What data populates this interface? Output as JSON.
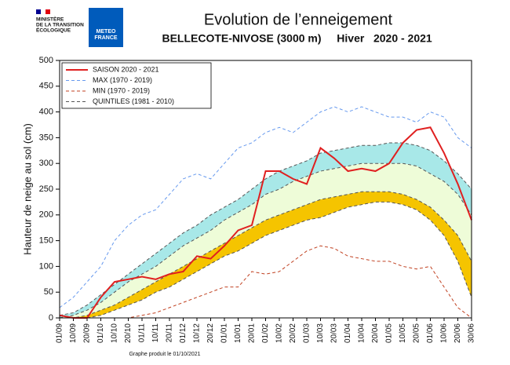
{
  "header": {
    "ministry": [
      "MINISTÈRE",
      "DE LA TRANSITION",
      "ÉCOLOGIQUE"
    ],
    "logo": [
      "METEO",
      "FRANCE"
    ]
  },
  "chart_data": {
    "type": "line",
    "title": "Evolution de l’enneigement",
    "subtitle": "BELLECOTE-NIVOSE (3000 m)",
    "season": "Hiver   2020 - 2021",
    "ylabel": "Hauteur de neige au sol (cm)",
    "footer": "Graphe produit le 01/10/2021",
    "categories": [
      "01/09",
      "10/09",
      "20/09",
      "01/10",
      "10/10",
      "20/10",
      "01/11",
      "10/11",
      "20/11",
      "01/12",
      "10/12",
      "20/12",
      "01/01",
      "10/01",
      "20/01",
      "01/02",
      "10/02",
      "20/02",
      "01/03",
      "10/03",
      "20/03",
      "01/04",
      "10/04",
      "20/04",
      "01/05",
      "10/05",
      "20/05",
      "01/06",
      "10/06",
      "20/06",
      "30/06"
    ],
    "ylim": [
      0,
      500
    ],
    "yticks": [
      0,
      50,
      100,
      150,
      200,
      250,
      300,
      350,
      400,
      450,
      500
    ],
    "series": [
      {
        "name": "SAISON 2020 - 2021",
        "color": "#e02020",
        "dash": false,
        "values": [
          5,
          0,
          0,
          40,
          70,
          75,
          80,
          75,
          85,
          90,
          120,
          115,
          140,
          170,
          180,
          285,
          285,
          270,
          260,
          330,
          310,
          285,
          290,
          285,
          300,
          340,
          365,
          370,
          320,
          260,
          190
        ]
      },
      {
        "name": "MAX (1970 - 2019)",
        "color": "#6699ee",
        "dash": true,
        "values": [
          20,
          40,
          70,
          100,
          150,
          180,
          200,
          210,
          240,
          270,
          280,
          270,
          300,
          330,
          340,
          360,
          370,
          360,
          380,
          400,
          410,
          400,
          410,
          400,
          390,
          390,
          380,
          400,
          390,
          350,
          330
        ]
      },
      {
        "name": "MIN (1970 - 2019)",
        "color": "#c04020",
        "dash": true,
        "values": [
          0,
          0,
          0,
          0,
          0,
          0,
          5,
          10,
          20,
          30,
          40,
          50,
          60,
          60,
          90,
          85,
          90,
          110,
          130,
          140,
          135,
          120,
          115,
          110,
          110,
          100,
          95,
          100,
          60,
          20,
          0
        ]
      }
    ],
    "quintiles": {
      "name": "QUINTILES (1981 - 2010)",
      "color": "#555555",
      "fills": [
        "#a8e8e8",
        "#eefcd8",
        "#f5c400"
      ],
      "values": [
        [
          5,
          10,
          25,
          45,
          65,
          85,
          105,
          125,
          145,
          165,
          180,
          200,
          215,
          230,
          250,
          270,
          285,
          295,
          305,
          320,
          325,
          330,
          335,
          335,
          340,
          340,
          335,
          325,
          305,
          280,
          250
        ],
        [
          0,
          5,
          15,
          30,
          50,
          70,
          85,
          100,
          120,
          140,
          155,
          170,
          190,
          205,
          220,
          240,
          250,
          265,
          275,
          285,
          290,
          295,
          300,
          300,
          300,
          300,
          295,
          280,
          265,
          240,
          200
        ],
        [
          0,
          0,
          5,
          15,
          25,
          40,
          55,
          70,
          85,
          100,
          115,
          130,
          145,
          160,
          175,
          190,
          200,
          210,
          220,
          230,
          235,
          240,
          245,
          245,
          245,
          240,
          230,
          215,
          190,
          160,
          110
        ],
        [
          0,
          0,
          0,
          5,
          15,
          25,
          35,
          50,
          60,
          75,
          90,
          105,
          120,
          130,
          145,
          160,
          170,
          180,
          190,
          195,
          205,
          215,
          220,
          225,
          225,
          220,
          210,
          190,
          160,
          110,
          40
        ]
      ]
    }
  }
}
